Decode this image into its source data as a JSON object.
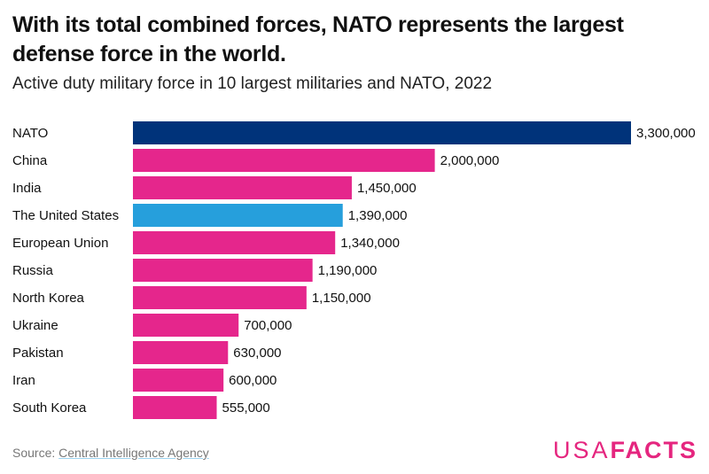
{
  "chart_data": {
    "type": "bar",
    "orientation": "horizontal",
    "title": "With its total combined forces, NATO represents the largest defense force in the world.",
    "subtitle": "Active duty military force in 10 largest militaries and NATO, 2022",
    "categories": [
      "NATO",
      "China",
      "India",
      "The United States",
      "European Union",
      "Russia",
      "North Korea",
      "Ukraine",
      "Pakistan",
      "Iran",
      "South Korea"
    ],
    "values": [
      3300000,
      2000000,
      1450000,
      1390000,
      1340000,
      1190000,
      1150000,
      700000,
      630000,
      600000,
      555000
    ],
    "value_labels": [
      "3,300,000",
      "2,000,000",
      "1,450,000",
      "1,390,000",
      "1,340,000",
      "1,190,000",
      "1,150,000",
      "700,000",
      "630,000",
      "600,000",
      "555,000"
    ],
    "colors": [
      "#00337a",
      "#e5268c",
      "#e5268c",
      "#269fdc",
      "#e5268c",
      "#e5268c",
      "#e5268c",
      "#e5268c",
      "#e5268c",
      "#e5268c",
      "#e5268c"
    ],
    "xlim": [
      0,
      3300000
    ],
    "grid": false
  },
  "source": {
    "label": "Source:",
    "link": "Central Intelligence Agency"
  },
  "logo": {
    "light": "USA",
    "bold": "FACTS"
  }
}
